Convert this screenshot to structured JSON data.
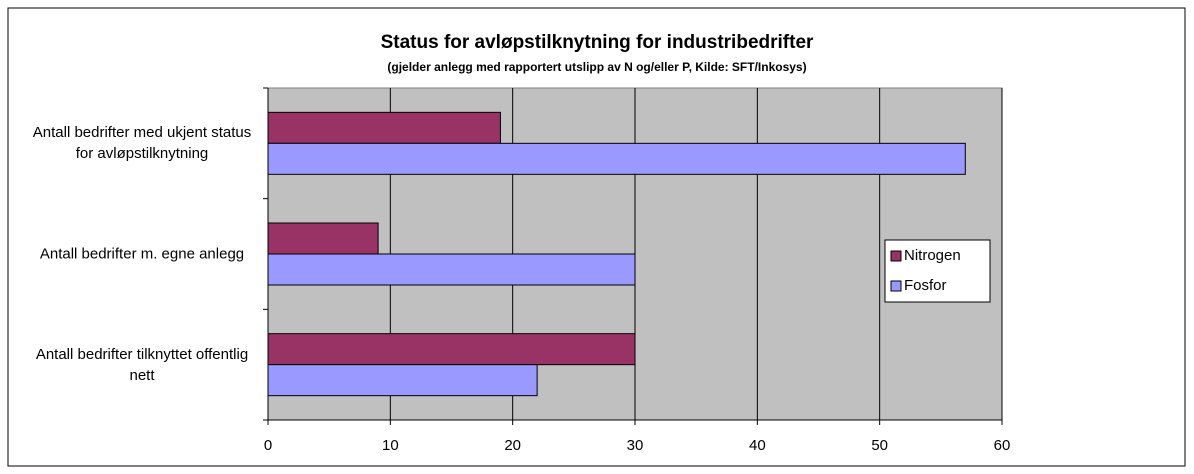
{
  "chart_data": {
    "type": "bar",
    "orientation": "horizontal",
    "title": "Status for avløpstilknytning for industribedrifter",
    "subtitle": "(gjelder anlegg med rapportert utslipp av N og/eller P, Kilde: SFT/Inkosys)",
    "categories": [
      "Antall bedrifter med ukjent status for avløpstilknytning",
      "Antall bedrifter m. egne anlegg",
      "Antall bedrifter tilknyttet offentlig nett"
    ],
    "series": [
      {
        "name": "Nitrogen",
        "color": "#993366",
        "values": [
          19,
          9,
          30
        ]
      },
      {
        "name": "Fosfor",
        "color": "#9999ff",
        "values": [
          57,
          30,
          22
        ]
      }
    ],
    "xlim": [
      0,
      60
    ],
    "xticks": [
      0,
      10,
      20,
      30,
      40,
      50,
      60
    ],
    "grid": true,
    "legend": "right"
  }
}
